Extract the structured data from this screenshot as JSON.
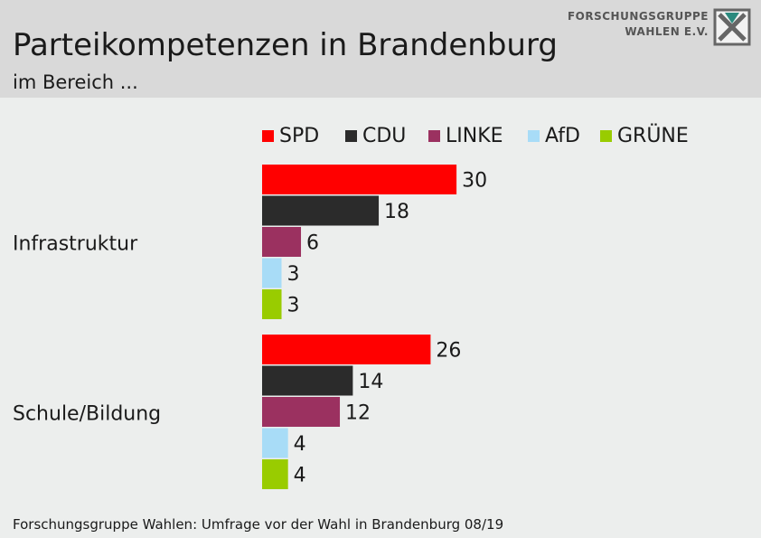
{
  "title": "Parteikompetenzen in Brandenburg",
  "subtitle": "im Bereich ...",
  "logo": {
    "line1": "FORSCHUNGSGRUPPE",
    "line2": "WAHLEN E.V."
  },
  "source": "Forschungsgruppe Wahlen: Umfrage vor der Wahl in Brandenburg 08/19",
  "chart_data": {
    "type": "bar",
    "orientation": "horizontal",
    "title": "Parteikompetenzen in Brandenburg",
    "subtitle": "im Bereich ...",
    "categories": [
      "Infrastruktur",
      "Schule/Bildung"
    ],
    "series": [
      {
        "name": "SPD",
        "color": "#ff0000",
        "values": [
          30,
          26
        ]
      },
      {
        "name": "CDU",
        "color": "#2b2b2b",
        "values": [
          18,
          14
        ]
      },
      {
        "name": "LINKE",
        "color": "#9b3160",
        "values": [
          6,
          12
        ]
      },
      {
        "name": "AfD",
        "color": "#a8dcf7",
        "values": [
          3,
          4
        ]
      },
      {
        "name": "GRÜNE",
        "color": "#99cc00",
        "values": [
          3,
          4
        ]
      }
    ],
    "legend_position": "top",
    "data_labels": true,
    "grid": false,
    "xlim": [
      0,
      100
    ]
  }
}
